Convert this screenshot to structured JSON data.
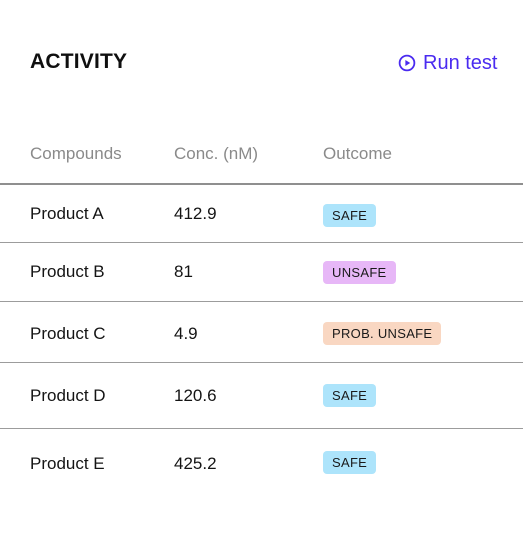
{
  "header": {
    "title": "ACTIVITY",
    "run_label": "Run test"
  },
  "table": {
    "columns": [
      "Compounds",
      "Conc. (nM)",
      "Outcome"
    ],
    "rows": [
      {
        "compound": "Product A",
        "conc": "412.9",
        "outcome": "SAFE",
        "status": "safe"
      },
      {
        "compound": "Product B",
        "conc": "81",
        "outcome": "UNSAFE",
        "status": "unsafe"
      },
      {
        "compound": "Product C",
        "conc": "4.9",
        "outcome": "PROB. UNSAFE",
        "status": "prob"
      },
      {
        "compound": "Product D",
        "conc": "120.6",
        "outcome": "SAFE",
        "status": "safe"
      },
      {
        "compound": "Product E",
        "conc": "425.2",
        "outcome": "SAFE",
        "status": "safe"
      }
    ]
  },
  "colors": {
    "accent": "#4a2bf0",
    "safe": "#ade4fb",
    "unsafe": "#e7b7f7",
    "prob_unsafe": "#f9d7c2"
  },
  "icons": {
    "run": "play-circle-icon"
  }
}
